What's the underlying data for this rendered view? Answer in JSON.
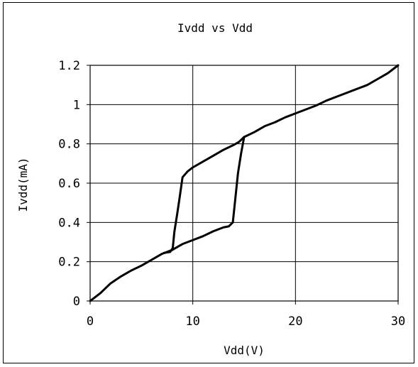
{
  "chart_data": {
    "type": "line",
    "title": "Ivdd vs Vdd",
    "xlabel": "Vdd(V)",
    "ylabel": "Ivdd(mA)",
    "xlim": [
      0,
      30
    ],
    "ylim": [
      0,
      1.2
    ],
    "x_ticks": [
      "0",
      "10",
      "20",
      "30"
    ],
    "y_ticks": [
      "0",
      "0.2",
      "0.4",
      "0.6",
      "0.8",
      "1",
      "1.2"
    ],
    "grid": true,
    "legend": "none",
    "series": [
      {
        "points": [
          [
            0,
            0
          ],
          [
            1,
            0.04
          ],
          [
            2,
            0.09
          ],
          [
            3,
            0.125
          ],
          [
            4,
            0.155
          ],
          [
            5,
            0.18
          ],
          [
            6,
            0.21
          ],
          [
            7,
            0.24
          ],
          [
            8,
            0.26
          ],
          [
            9,
            0.29
          ],
          [
            10,
            0.31
          ],
          [
            11,
            0.33
          ],
          [
            12,
            0.355
          ],
          [
            13,
            0.375
          ],
          [
            13.5,
            0.38
          ],
          [
            13.9,
            0.4
          ],
          [
            14.1,
            0.5
          ],
          [
            14.4,
            0.65
          ],
          [
            14.7,
            0.75
          ],
          [
            15,
            0.835
          ],
          [
            16,
            0.86
          ],
          [
            17,
            0.89
          ],
          [
            18,
            0.91
          ],
          [
            19,
            0.935
          ],
          [
            20,
            0.955
          ],
          [
            21,
            0.975
          ],
          [
            22,
            0.995
          ],
          [
            23,
            1.02
          ],
          [
            24,
            1.04
          ],
          [
            25,
            1.06
          ],
          [
            26,
            1.08
          ],
          [
            27,
            1.1
          ],
          [
            28,
            1.13
          ],
          [
            29,
            1.16
          ],
          [
            30,
            1.2
          ]
        ]
      },
      {
        "points": [
          [
            15,
            0.835
          ],
          [
            14.5,
            0.81
          ],
          [
            14,
            0.795
          ],
          [
            13,
            0.77
          ],
          [
            12,
            0.74
          ],
          [
            11,
            0.71
          ],
          [
            10,
            0.68
          ],
          [
            9.5,
            0.66
          ],
          [
            9,
            0.63
          ],
          [
            8.7,
            0.52
          ],
          [
            8.5,
            0.45
          ],
          [
            8.2,
            0.35
          ],
          [
            8.05,
            0.27
          ],
          [
            7.8,
            0.25
          ],
          [
            7.2,
            0.245
          ]
        ]
      }
    ]
  }
}
